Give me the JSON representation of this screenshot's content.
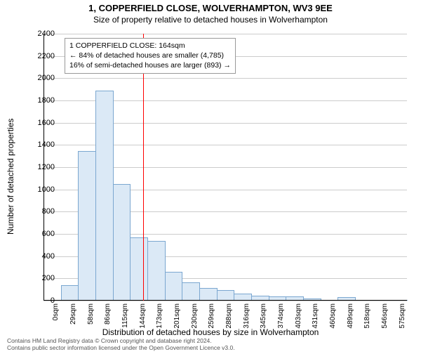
{
  "title": "1, COPPERFIELD CLOSE, WOLVERHAMPTON, WV3 9EE",
  "subtitle": "Size of property relative to detached houses in Wolverhampton",
  "y_axis_label": "Number of detached properties",
  "x_axis_label": "Distribution of detached houses by size in Wolverhampton",
  "footer_line1": "Contains HM Land Registry data © Crown copyright and database right 2024.",
  "footer_line2": "Contains public sector information licensed under the Open Government Licence v3.0.",
  "chart": {
    "type": "histogram",
    "ylim": [
      0,
      2400
    ],
    "ytick_step": 200,
    "x_categories": [
      "0sqm",
      "29sqm",
      "58sqm",
      "86sqm",
      "115sqm",
      "144sqm",
      "173sqm",
      "201sqm",
      "230sqm",
      "259sqm",
      "288sqm",
      "316sqm",
      "345sqm",
      "374sqm",
      "403sqm",
      "431sqm",
      "460sqm",
      "489sqm",
      "518sqm",
      "546sqm",
      "575sqm"
    ],
    "values": [
      0,
      130,
      1340,
      1880,
      1040,
      560,
      530,
      250,
      160,
      110,
      90,
      60,
      40,
      30,
      30,
      15,
      0,
      25,
      0,
      0,
      0
    ],
    "bar_fill": "#dbe9f6",
    "bar_stroke": "#7ba7d0",
    "grid_color": "#cccccc",
    "background_color": "#ffffff",
    "marker": {
      "x_value_sqm": 164,
      "color": "#ff0000"
    },
    "annotation": {
      "line1": "1 COPPERFIELD CLOSE: 164sqm",
      "line2": "← 84% of detached houses are smaller (4,785)",
      "line3": "16% of semi-detached houses are larger (893) →"
    }
  }
}
